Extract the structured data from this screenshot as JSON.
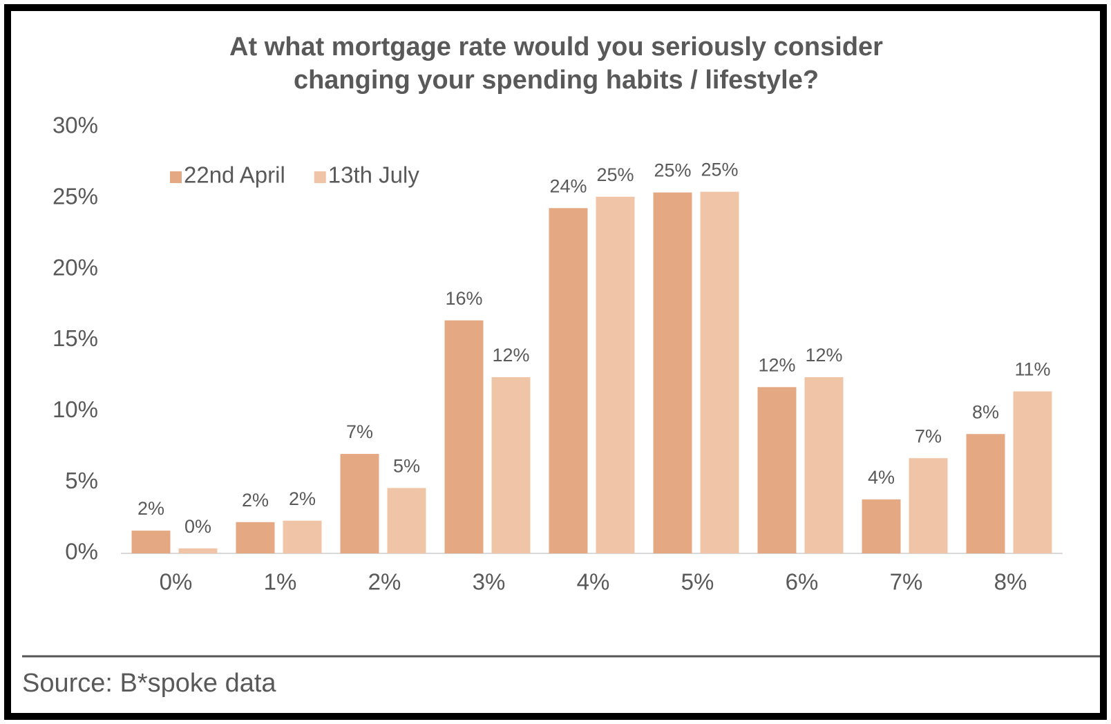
{
  "chart_data": {
    "type": "bar",
    "title": "At what mortgage rate would you seriously consider changing your spending habits / lifestyle?",
    "categories": [
      "0%",
      "1%",
      "2%",
      "3%",
      "4%",
      "5%",
      "6%",
      "7%",
      "8%"
    ],
    "series": [
      {
        "name": "22nd April",
        "color": "#e4a882",
        "values": [
          1.6,
          2.2,
          7.0,
          16.4,
          24.3,
          25.4,
          11.7,
          3.8,
          8.4
        ],
        "value_labels": [
          "2%",
          "2%",
          "7%",
          "16%",
          "24%",
          "25%",
          "12%",
          "4%",
          "8%"
        ]
      },
      {
        "name": "13th July",
        "color": "#f0c4a6",
        "values": [
          0.35,
          2.3,
          4.6,
          12.4,
          25.1,
          25.45,
          12.4,
          6.7,
          11.4
        ],
        "value_labels": [
          "0%",
          "2%",
          "5%",
          "12%",
          "25%",
          "25%",
          "12%",
          "7%",
          "11%"
        ]
      }
    ],
    "ylim": [
      0,
      30
    ],
    "yticks": [
      {
        "value": 0,
        "label": "0%"
      },
      {
        "value": 5,
        "label": "5%"
      },
      {
        "value": 10,
        "label": "10%"
      },
      {
        "value": 15,
        "label": "15%"
      },
      {
        "value": 20,
        "label": "20%"
      },
      {
        "value": 25,
        "label": "25%"
      },
      {
        "value": 30,
        "label": "30%"
      }
    ],
    "source": "Source: B*spoke data"
  }
}
